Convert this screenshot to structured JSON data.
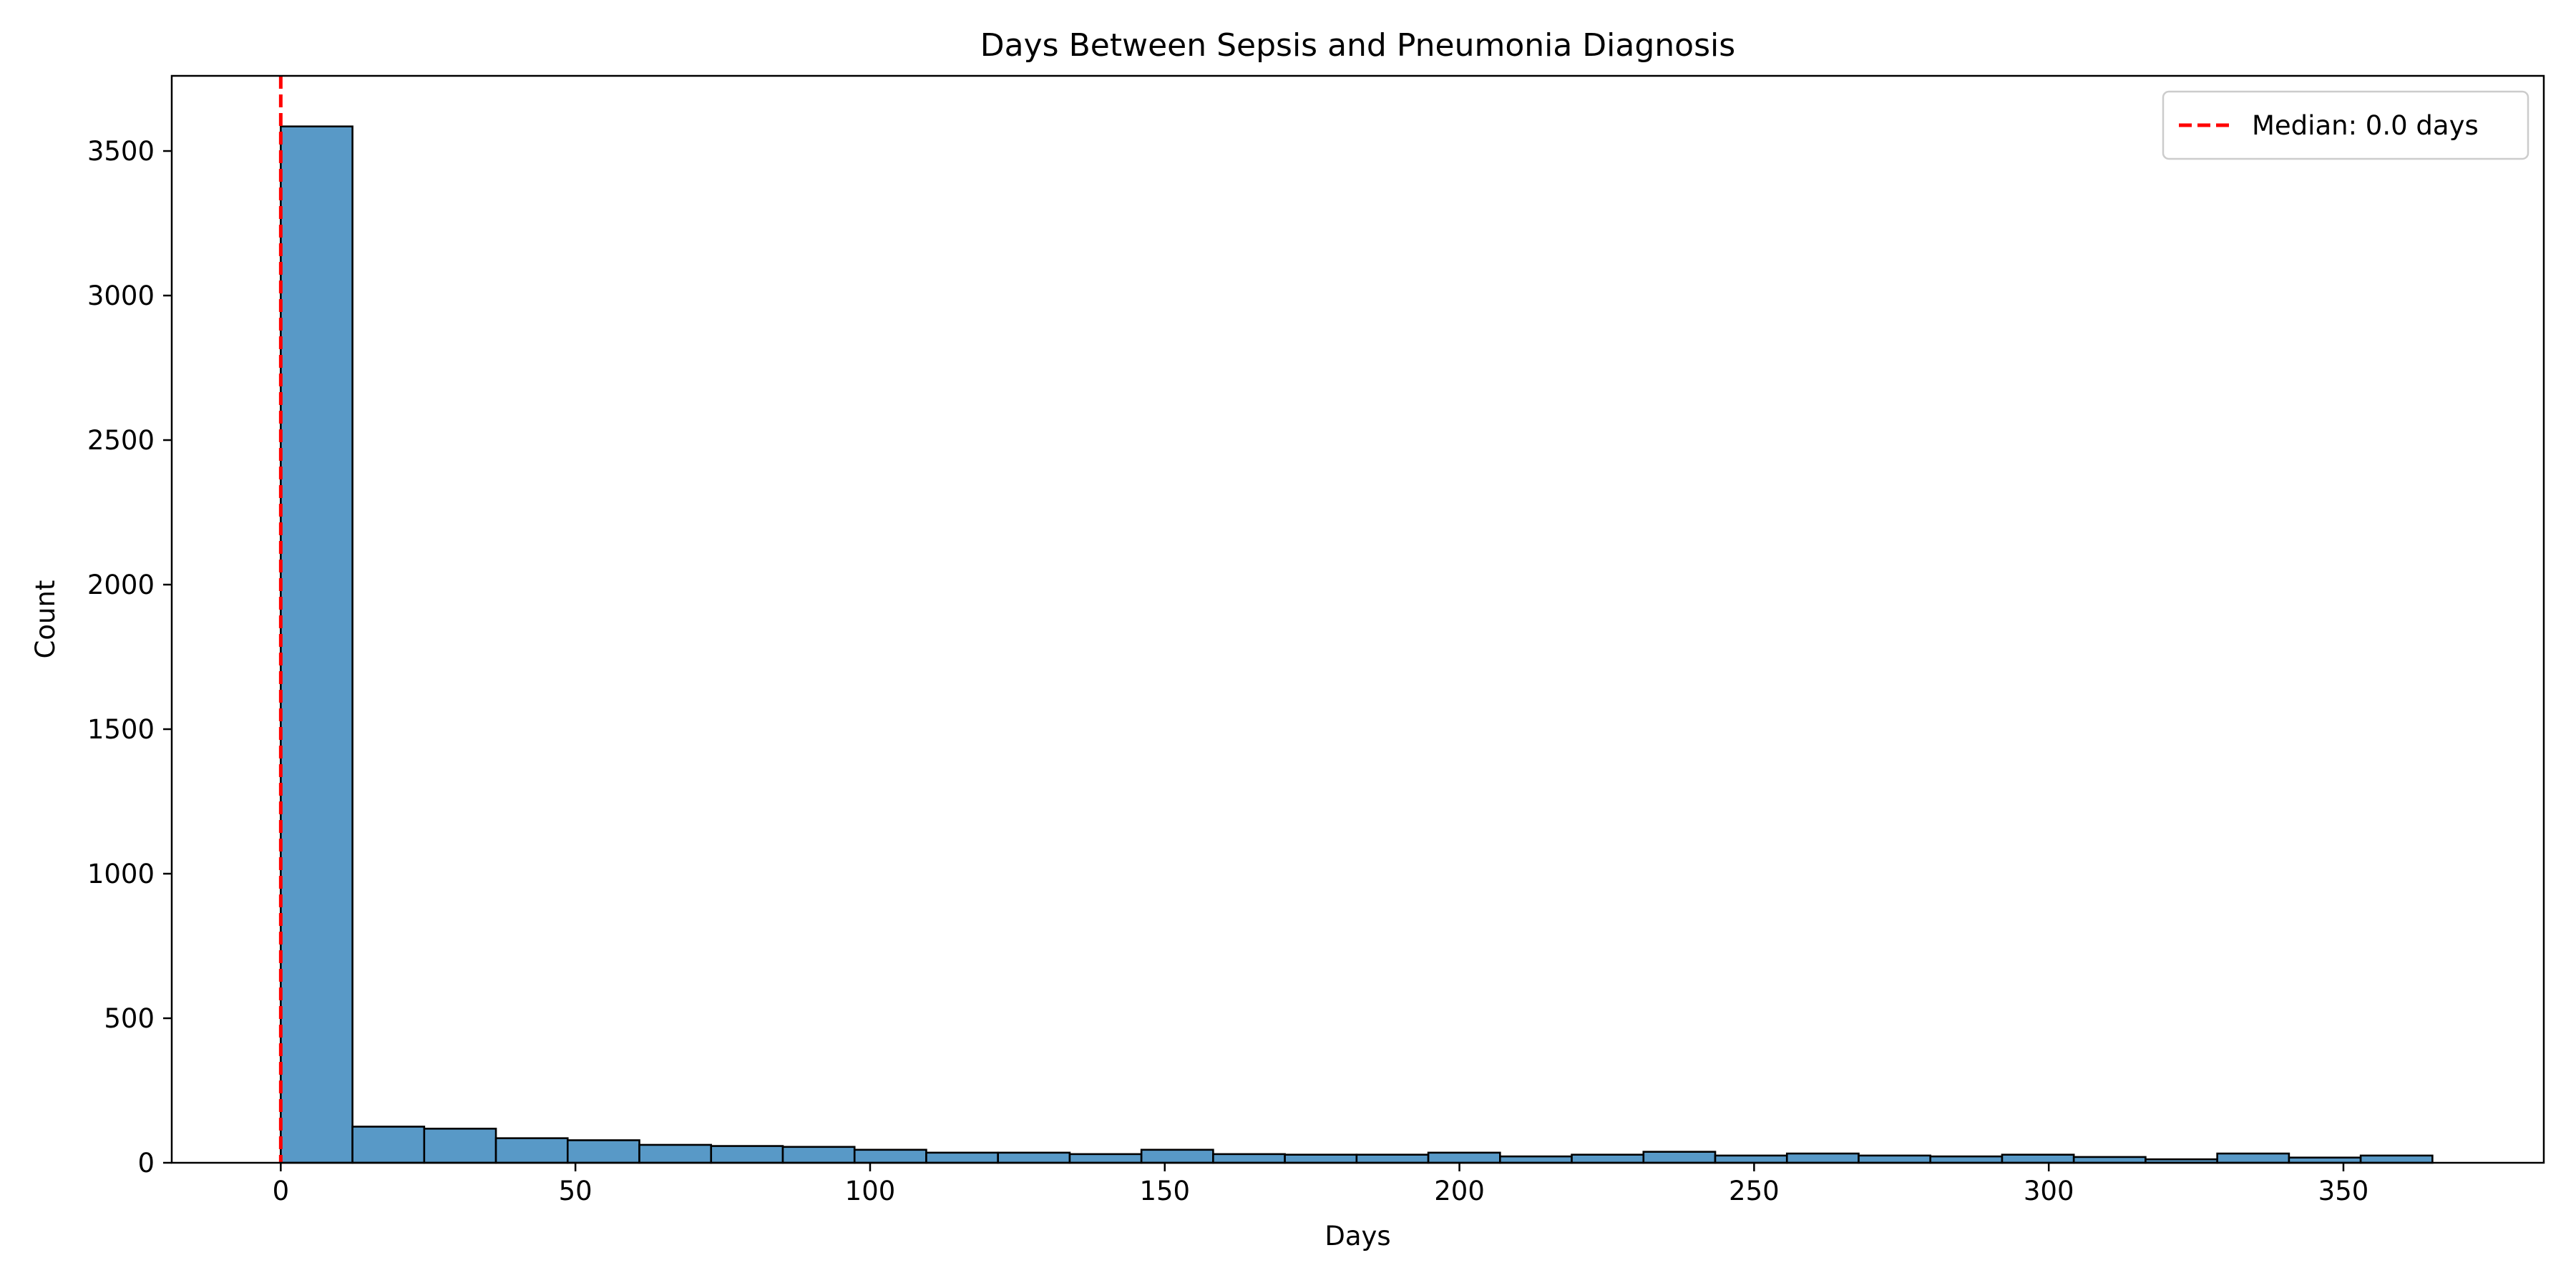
{
  "chart_data": {
    "type": "bar",
    "title": "Days Between Sepsis and Pneumonia Diagnosis",
    "xlabel": "Days",
    "ylabel": "Count",
    "xlim": [
      -18.5,
      384
    ],
    "ylim": [
      0,
      3760
    ],
    "xticks": [
      0,
      50,
      100,
      150,
      200,
      250,
      300,
      350
    ],
    "yticks": [
      0,
      500,
      1000,
      1500,
      2000,
      2500,
      3000,
      3500
    ],
    "bin_start": 0,
    "bin_width": 12.17,
    "values": [
      3585,
      125,
      118,
      85,
      78,
      62,
      58,
      55,
      45,
      35,
      35,
      30,
      45,
      30,
      28,
      28,
      35,
      22,
      28,
      38,
      25,
      32,
      25,
      22,
      28,
      20,
      12,
      32,
      18,
      25
    ],
    "bar_color": "#5899c7",
    "bar_edge_color": "#000000",
    "grid": false,
    "legend": {
      "placement": "top-right",
      "entries": [
        {
          "label": "Median: 0.0 days",
          "color": "#ff0000",
          "style": "dashed"
        }
      ]
    },
    "median_line": {
      "x": 0,
      "color": "#ff0000"
    }
  }
}
